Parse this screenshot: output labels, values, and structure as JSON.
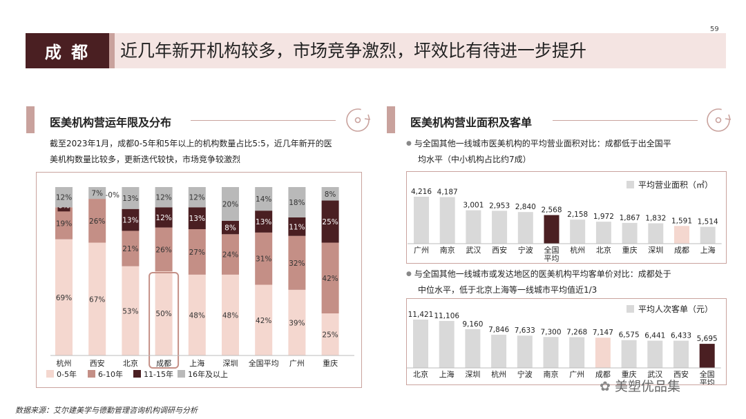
{
  "page": {
    "number": "59",
    "city": "成 都",
    "title": "近几年新开机构较多，市场竞争激烈，坪效比有待进一步提升"
  },
  "left": {
    "heading": "医美机构营运年限及分布",
    "desc_line1": "截至2023年1月，成都0-5年和5年以上的机构数量占比5:5，近几年新开的医",
    "desc_line2": "美机构数量比较多，更新迭代较快，市场竞争较激烈"
  },
  "right": {
    "heading": "医美机构营业面积及客单",
    "bullet1_line1": "与全国其他一线城市医美机构的平均营业面积对比：成都低于出全国平",
    "bullet1_line2": "均水平（中小机构占比约7成）",
    "bullet2_line1": "与全国其他一线城市或发达地区的医美机构平均客单价对比：成都处于",
    "bullet2_line2": "中位水平，低于北京上海等一线城市平均值近1/3"
  },
  "source": "数据来源：艾尔建美学与德勤管理咨询机构调研与分析",
  "watermark": "美塑优品集",
  "colors": {
    "s1": "#f4d7cf",
    "s2": "#c48f86",
    "s3": "#4a1f22",
    "s4": "#b9b9b9",
    "gray_bar": "#d9d9d9",
    "highlight": "#f4d7cf",
    "dark": "#4a1f22",
    "accent": "#c9a29d"
  },
  "chart_data": [
    {
      "type": "bar",
      "stacked": true,
      "categories": [
        "杭州",
        "西安",
        "北京",
        "成都",
        "上海",
        "深圳",
        "全国平均",
        "广州",
        "重庆"
      ],
      "series": [
        {
          "name": "0-5年",
          "values": [
            69,
            67,
            53,
            50,
            48,
            48,
            42,
            39,
            25
          ]
        },
        {
          "name": "6-10年",
          "values": [
            19,
            26,
            21,
            26,
            27,
            24,
            31,
            32,
            42
          ]
        },
        {
          "name": "11-15年",
          "values": [
            0,
            0,
            13,
            12,
            13,
            8,
            13,
            11,
            25
          ]
        },
        {
          "name": "16年及以上",
          "values": [
            12,
            7,
            13,
            12,
            12,
            20,
            14,
            18,
            8
          ]
        }
      ],
      "labels": [
        [
          "69%",
          "19%",
          "0%",
          "12%"
        ],
        [
          "67%",
          "26%",
          "0%",
          "7%"
        ],
        [
          "53%",
          "21%",
          "13%",
          "13%"
        ],
        [
          "50%",
          "26%",
          "12%",
          "12%"
        ],
        [
          "48%",
          "27%",
          "13%",
          "12%"
        ],
        [
          "48%",
          "24%",
          "8%",
          "20%"
        ],
        [
          "42%",
          "31%",
          "13%",
          "14%"
        ],
        [
          "39%",
          "32%",
          "11%",
          "18%"
        ],
        [
          "25%",
          "42%",
          "25%",
          "8%"
        ]
      ],
      "highlight": "成都",
      "legend_position": "bottom-left"
    },
    {
      "type": "bar",
      "legend": "平均营业面积（㎡）",
      "categories": [
        "广州",
        "南京",
        "武汉",
        "西安",
        "宁波",
        "全国平均",
        "杭州",
        "北京",
        "重庆",
        "深圳",
        "成都",
        "上海"
      ],
      "values": [
        4216,
        4187,
        3001,
        2953,
        2840,
        2568,
        2158,
        1972,
        1867,
        1832,
        1591,
        1514
      ],
      "value_labels": [
        "4,216",
        "4,187",
        "3,001",
        "2,953",
        "2,840",
        "2,568",
        "2,158",
        "1,972",
        "1,867",
        "1,832",
        "1,591",
        "1,514"
      ],
      "highlight": "成都",
      "average": "全国平均",
      "legend_position": "top-right"
    },
    {
      "type": "bar",
      "legend": "平均人次客单（元）",
      "categories": [
        "北京",
        "上海",
        "深圳",
        "杭州",
        "宁波",
        "南京",
        "广州",
        "成都",
        "重庆",
        "武汉",
        "西安",
        "全国平均"
      ],
      "values": [
        11421,
        11106,
        9160,
        7846,
        7633,
        7300,
        7268,
        7147,
        6575,
        6441,
        6433,
        5695
      ],
      "value_labels": [
        "11,421",
        "11,106",
        "9,160",
        "7,846",
        "7,633",
        "7,300",
        "7,268",
        "7,147",
        "6,575",
        "6,441",
        "6,433",
        "5,695"
      ],
      "highlight": "成都",
      "average": "全国平均",
      "legend_position": "top-right"
    }
  ]
}
